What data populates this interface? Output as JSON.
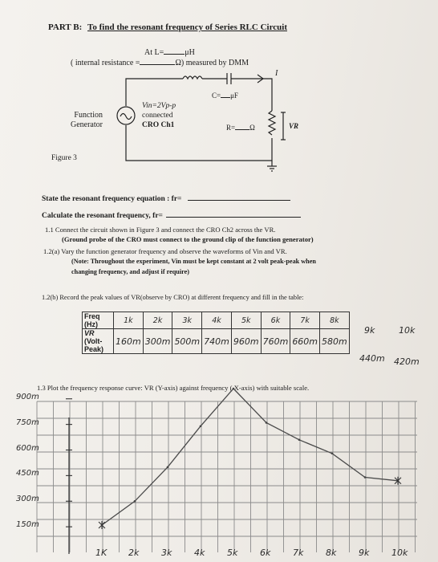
{
  "header": {
    "part": "PART B:",
    "title": "To find the resonant frequency of Series RLC Circuit"
  },
  "meta": {
    "at_l": "At L=",
    "uh": "μH",
    "internal_resistance": "( internal resistance =",
    "measured_by": "Ω) measured by DMM"
  },
  "circuit": {
    "function_generator": [
      "Function",
      "Generator"
    ],
    "source_note": [
      "Vin=2Vp-p",
      "connected",
      "CRO Ch1"
    ],
    "capacitor": "C=",
    "capacitor_unit": "μF",
    "resistor": "R=",
    "resistor_unit": "Ω",
    "vr": "VR",
    "current_mark": "I",
    "figure_caption": "Figure 3"
  },
  "questions": {
    "state_equation": "State the resonant frequency equation : fr=",
    "calculate": "Calculate the resonant frequency, fr="
  },
  "steps": {
    "s11_a": "1.1  Connect the circuit shown in Figure 3 and connect the CRO Ch2 across the VR.",
    "s11_b": "(Ground probe of the CRO must connect to the ground clip of the function generator)",
    "s12a_a": "1.2(a)  Vary the function generator frequency and observe the waveforms of Vin and VR.",
    "s12a_b": "(Note: Throughout the experiment, Vin must be kept constant at 2 volt peak-peak when",
    "s12a_c": "changing frequency, and adjust if require)",
    "s12b": "1.2(b)  Record the peak values of VR(observe by CRO) at different frequency and fill in the table:",
    "s13": "1.3  Plot the frequency response curve: VR (Y-axis) against frequency ( X-axis) with suitable scale."
  },
  "table": {
    "freq_label": [
      "Freq",
      "(Hz)"
    ],
    "vr_label": [
      "VR",
      "(Volt-",
      "Peak)"
    ],
    "freq_handwritten": [
      "1k",
      "2k",
      "3k",
      "4k",
      "5k",
      "6k",
      "7k",
      "8k",
      "9k",
      "10k"
    ],
    "vr_handwritten": [
      "160m",
      "300m",
      "500m",
      "740m",
      "960m",
      "760m",
      "660m",
      "580m",
      "440m",
      "420m"
    ]
  },
  "graph": {
    "y_labels": [
      "900m",
      "750m",
      "600m",
      "450m",
      "300m",
      "150m"
    ],
    "x_labels": [
      "1K",
      "2k",
      "3k",
      "4k",
      "5k",
      "6k",
      "7k",
      "8k",
      "9k",
      "10k"
    ]
  },
  "chart_data": {
    "type": "line",
    "xlabel": "",
    "ylabel": "",
    "categories": [
      "1K",
      "2k",
      "3k",
      "4k",
      "5k",
      "6k",
      "7k",
      "8k",
      "9k",
      "10k"
    ],
    "x_khz": [
      1,
      2,
      3,
      4,
      5,
      6,
      7,
      8,
      9,
      10
    ],
    "series": [
      {
        "values_mV": [
          160,
          300,
          500,
          740,
          960,
          760,
          660,
          580,
          440,
          420
        ]
      }
    ],
    "y_ticks_mV": [
      150,
      300,
      450,
      600,
      750,
      900
    ],
    "grid": true
  }
}
